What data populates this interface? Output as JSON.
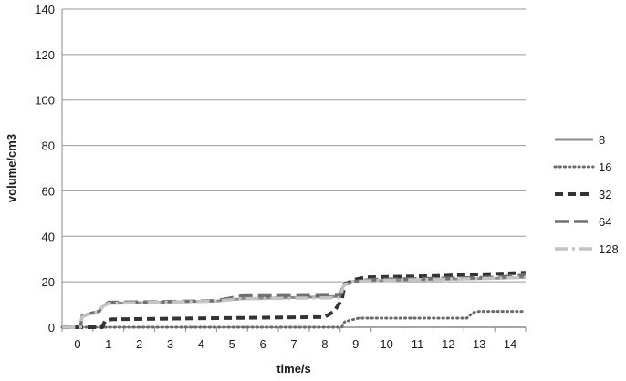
{
  "chart_data": {
    "type": "line",
    "xlabel": "time/s",
    "ylabel": "volume/cm3",
    "xlim": [
      0,
      15
    ],
    "ylim": [
      0,
      140
    ],
    "x_ticks": [
      0,
      1,
      2,
      3,
      4,
      5,
      6,
      7,
      8,
      9,
      10,
      11,
      12,
      13,
      14
    ],
    "y_ticks": [
      0,
      20,
      40,
      60,
      80,
      100,
      120,
      140
    ],
    "grid": "horizontal",
    "legend_position": "right",
    "series": [
      {
        "name": "8",
        "color": "#8c8c8c",
        "dash": "solid",
        "points": [
          [
            0,
            0
          ],
          [
            0.6,
            0
          ],
          [
            0.65,
            5
          ],
          [
            0.9,
            6
          ],
          [
            1.2,
            7
          ],
          [
            1.3,
            9
          ],
          [
            1.5,
            10.5
          ],
          [
            3,
            11
          ],
          [
            5,
            11.5
          ],
          [
            5.8,
            12.5
          ],
          [
            9,
            13.5
          ],
          [
            9.1,
            18
          ],
          [
            9.3,
            20
          ],
          [
            10,
            20.5
          ],
          [
            14,
            21.5
          ],
          [
            15,
            22
          ]
        ]
      },
      {
        "name": "16",
        "color": "#6a6a6a",
        "dash": "dotted",
        "points": [
          [
            0,
            0
          ],
          [
            9.05,
            0
          ],
          [
            9.15,
            2.5
          ],
          [
            9.6,
            4
          ],
          [
            13.1,
            4
          ],
          [
            13.3,
            6.5
          ],
          [
            13.5,
            7
          ],
          [
            15,
            7
          ]
        ]
      },
      {
        "name": "32",
        "color": "#333333",
        "dash": "short-dash",
        "points": [
          [
            0,
            0
          ],
          [
            1.3,
            0
          ],
          [
            1.4,
            3
          ],
          [
            1.6,
            3.5
          ],
          [
            5,
            4
          ],
          [
            8.5,
            4.5
          ],
          [
            8.8,
            7
          ],
          [
            9.05,
            12
          ],
          [
            9.15,
            19
          ],
          [
            9.5,
            21
          ],
          [
            9.8,
            22
          ],
          [
            12,
            22.5
          ],
          [
            15,
            24
          ]
        ]
      },
      {
        "name": "64",
        "color": "#707070",
        "dash": "long-dash",
        "points": [
          [
            0,
            0
          ],
          [
            0.6,
            0
          ],
          [
            0.65,
            5
          ],
          [
            0.9,
            6
          ],
          [
            1.2,
            7
          ],
          [
            1.3,
            9
          ],
          [
            1.5,
            11
          ],
          [
            3,
            11.2
          ],
          [
            5,
            11.7
          ],
          [
            5.8,
            13.8
          ],
          [
            9,
            14
          ],
          [
            9.1,
            18.5
          ],
          [
            9.4,
            20
          ],
          [
            10,
            21
          ],
          [
            14,
            22
          ],
          [
            15,
            23
          ]
        ]
      },
      {
        "name": "128",
        "color": "#c4c4c4",
        "dash": "dash-dot",
        "points": [
          [
            0,
            0
          ],
          [
            0.6,
            0
          ],
          [
            0.65,
            4.5
          ],
          [
            0.9,
            6
          ],
          [
            1.2,
            7
          ],
          [
            1.3,
            9
          ],
          [
            1.5,
            10.5
          ],
          [
            3,
            11
          ],
          [
            5,
            11.5
          ],
          [
            5.8,
            12.5
          ],
          [
            9,
            13
          ],
          [
            9.1,
            18
          ],
          [
            9.3,
            20
          ],
          [
            10,
            20.5
          ],
          [
            14,
            21.5
          ],
          [
            15,
            22
          ]
        ]
      }
    ]
  }
}
